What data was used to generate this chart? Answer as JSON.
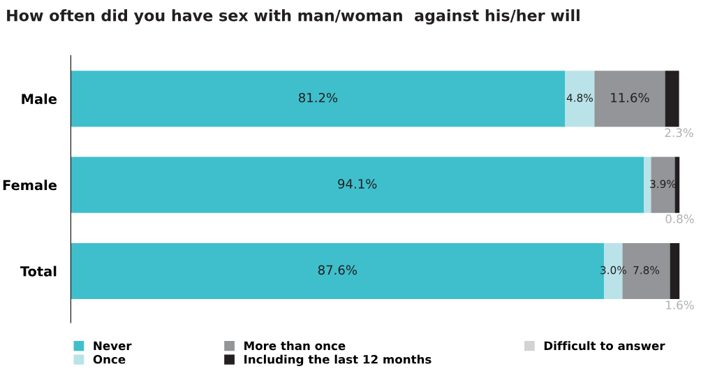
{
  "chart_data": {
    "type": "bar",
    "orientation": "horizontal",
    "stacked": true,
    "title": "How often did you have sex with man/woman  against his/her will",
    "categories": [
      "Male",
      "Female",
      "Total"
    ],
    "series": [
      {
        "name": "Never",
        "color": "#3fbfcc",
        "values": [
          81.2,
          94.1,
          87.6
        ],
        "value_labels": [
          "81.2%",
          "94.1%",
          "87.6%"
        ]
      },
      {
        "name": "Once",
        "color": "#b9e3e8",
        "values": [
          4.8,
          1.2,
          3.0
        ],
        "value_labels": [
          "4.8%",
          null,
          "3.0%"
        ]
      },
      {
        "name": "More than once",
        "color": "#939598",
        "values": [
          11.6,
          3.9,
          7.8
        ],
        "value_labels": [
          "11.6%",
          "3.9%",
          "7.8%"
        ]
      },
      {
        "name": "Including the last 12 months",
        "color": "#231f20",
        "values": [
          2.3,
          0.8,
          1.6
        ],
        "value_labels": [
          "2.3%",
          "0.8%",
          "1.6%"
        ]
      },
      {
        "name": "Difficult to answer",
        "color": "#d1d3d4",
        "values": [
          null,
          null,
          null
        ]
      }
    ],
    "legend": "bottom",
    "grid": false
  }
}
